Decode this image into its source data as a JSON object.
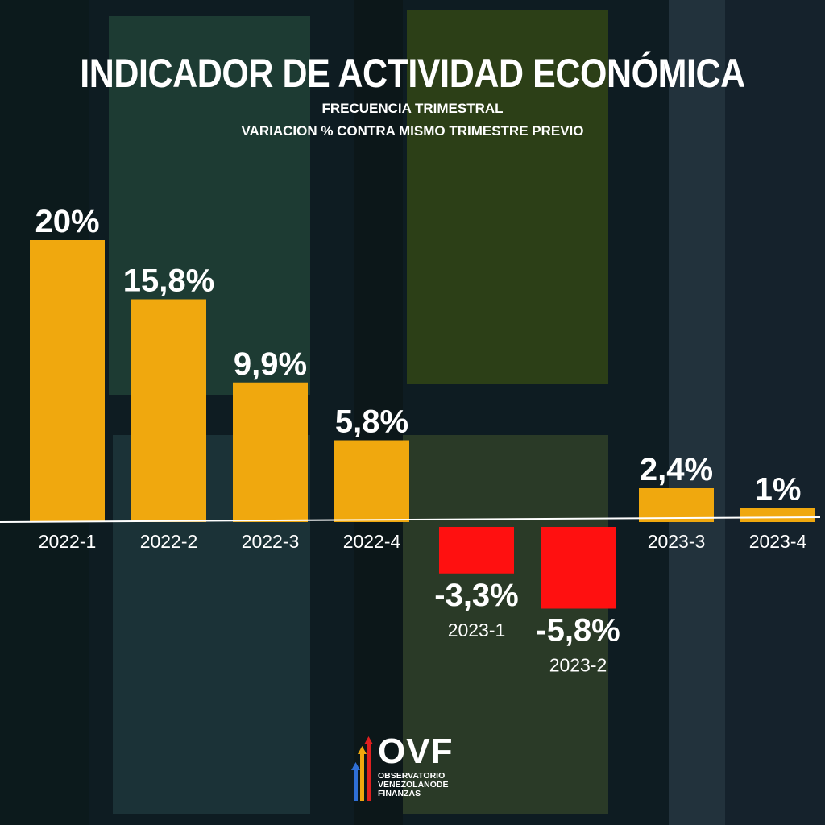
{
  "header": {
    "title": "INDICADOR DE ACTIVIDAD ECONÓMICA",
    "subtitle1": "FRECUENCIA TRIMESTRAL",
    "subtitle2": "VARIACION % CONTRA MISMO TRIMESTRE PREVIO"
  },
  "logo": {
    "wordmark": "OVF",
    "line1": "OBSERVATORIO",
    "line2": "VENEZOLANODE",
    "line3": "FINANZAS"
  },
  "colors": {
    "positive": "#f0a80e",
    "negative": "#ff1010",
    "text": "#ffffff",
    "axis": "#ffffff"
  },
  "chart_data": {
    "type": "bar",
    "categories": [
      "2022-1",
      "2022-2",
      "2022-3",
      "2022-4",
      "2023-1",
      "2023-2",
      "2023-3",
      "2023-4"
    ],
    "values": [
      20,
      15.8,
      9.9,
      5.8,
      -3.3,
      -5.8,
      2.4,
      1
    ],
    "value_labels": [
      "20%",
      "15,8%",
      "9,9%",
      "5,8%",
      "-3,3%",
      "-5,8%",
      "2,4%",
      "1%"
    ],
    "title": "INDICADOR DE ACTIVIDAD ECONÓMICA",
    "subtitle": "FRECUENCIA TRIMESTRAL / VARIACION % CONTRA MISMO TRIMESTRE PREVIO",
    "xlabel": "",
    "ylabel": "",
    "grid": false,
    "legend": "none"
  }
}
